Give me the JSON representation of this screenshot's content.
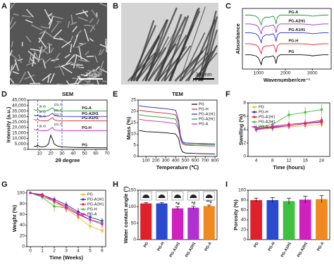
{
  "images": [
    {
      "panel": "A",
      "scale_bar": "2 μm"
    },
    {
      "panel": "B",
      "scale_bar": "300 nm"
    }
  ],
  "chart_data": [
    {
      "panel": "C",
      "type": "line",
      "x_label": "Wavenumber/cm⁻¹",
      "y_label": "Absorbance",
      "legend": "inline",
      "x": [
        500,
        700,
        900,
        1000,
        1050,
        1100,
        1150,
        1250,
        1400,
        1550,
        1600,
        1650,
        1700,
        1800,
        2000,
        2300,
        2600,
        2900,
        3000,
        3200,
        3400,
        3600
      ],
      "xlim": [
        400,
        3700
      ],
      "xticks": [
        1000,
        2000,
        3000
      ],
      "ylim": [
        -0.5,
        5
      ],
      "series": [
        {
          "name": "PG",
          "color": "#000000",
          "values": [
            0.8,
            0.8,
            0.7,
            0.5,
            0.2,
            -0.1,
            0.4,
            0.6,
            0.6,
            0.7,
            0.5,
            0,
            0.6,
            0.8,
            0.8,
            0.8,
            0.8,
            0.75,
            0.7,
            0.75,
            0.8,
            0.8
          ]
        },
        {
          "name": "PG-H",
          "color": "#e0202a",
          "values": [
            1.8,
            1.8,
            1.7,
            1.5,
            1.2,
            0.9,
            1.4,
            1.6,
            1.6,
            1.7,
            1.5,
            1.0,
            1.6,
            1.8,
            1.8,
            1.8,
            1.8,
            1.75,
            1.7,
            1.75,
            1.8,
            1.8
          ]
        },
        {
          "name": "PG-A1H1",
          "color": "#2a2ad0",
          "values": [
            2.8,
            2.8,
            2.7,
            2.5,
            2.2,
            1.9,
            2.4,
            2.6,
            2.6,
            2.7,
            2.5,
            2.0,
            2.6,
            2.8,
            2.8,
            2.8,
            2.8,
            2.75,
            2.7,
            2.75,
            2.8,
            2.8
          ]
        },
        {
          "name": "PG-A2H1",
          "color": "#9b30c8",
          "values": [
            3.6,
            3.6,
            3.5,
            3.3,
            3.0,
            2.7,
            3.2,
            3.4,
            3.4,
            3.5,
            3.3,
            2.8,
            3.4,
            3.6,
            3.6,
            3.6,
            3.6,
            3.55,
            3.5,
            3.55,
            3.6,
            3.6
          ]
        },
        {
          "name": "PG-A",
          "color": "#1a9a2a",
          "values": [
            4.4,
            4.4,
            4.3,
            4.1,
            3.8,
            3.5,
            4.0,
            4.2,
            4.2,
            4.3,
            4.1,
            3.6,
            4.2,
            4.4,
            4.4,
            4.4,
            4.4,
            4.35,
            4.3,
            4.35,
            4.4,
            4.4
          ]
        }
      ]
    },
    {
      "panel": "D",
      "type": "line",
      "title": "SEM",
      "x_label": "2θ degree",
      "y_label": "Intensity (a.u.)",
      "legend": "inline",
      "x": [
        5,
        7,
        8.4,
        10,
        13,
        16,
        18,
        20,
        21.7,
        23,
        26,
        30,
        40,
        50,
        60,
        70
      ],
      "xlim": [
        0,
        70
      ],
      "xticks": [
        10,
        20,
        30,
        40,
        50,
        60,
        70
      ],
      "ylim": [
        0,
        45000
      ],
      "yticks": [
        0,
        {
          "value": 5000,
          "label": "5,000"
        },
        {
          "value": 10000,
          "label": "10,000"
        },
        {
          "value": 15000,
          "label": "15,000"
        },
        {
          "value": 20000,
          "label": "20,000"
        },
        {
          "value": 25000,
          "label": "25,000"
        },
        {
          "value": 30000,
          "label": "30,000"
        },
        {
          "value": 35000,
          "label": "35,000"
        },
        {
          "value": 40000,
          "label": "40,000"
        },
        {
          "value": 45000,
          "label": "45,000"
        }
      ],
      "vlines": [
        8.4,
        30
      ],
      "annotations": [
        "(8.4)",
        "(21.7)"
      ],
      "series": [
        {
          "name": "PG",
          "color": "#000000",
          "values": [
            3000,
            2500,
            4000,
            2500,
            2200,
            3000,
            5000,
            13000,
            9000,
            5000,
            3000,
            2200,
            1800,
            1600,
            1500,
            1400
          ]
        },
        {
          "name": "PG-H",
          "color": "#d020c0",
          "values": [
            18500,
            17500,
            18500,
            17200,
            17000,
            17200,
            17500,
            19000,
            20000,
            18000,
            17300,
            17100,
            17000,
            17000,
            17000,
            17000
          ]
        },
        {
          "name": "PG-A1H1",
          "color": "#e0202a",
          "values": [
            27500,
            26500,
            27500,
            26200,
            26000,
            26200,
            26500,
            28000,
            29000,
            27000,
            26300,
            26100,
            26000,
            26000,
            26000,
            26000
          ]
        },
        {
          "name": "PG-A2H1",
          "color": "#2a2ad0",
          "values": [
            31500,
            30500,
            31500,
            30200,
            30000,
            30200,
            30500,
            32000,
            33000,
            31000,
            30300,
            30100,
            30000,
            30000,
            30000,
            30000
          ]
        },
        {
          "name": "PG-A",
          "color": "#1a9a2a",
          "values": [
            36500,
            35500,
            36500,
            35200,
            35000,
            35200,
            35500,
            37000,
            38000,
            36000,
            35300,
            35100,
            35000,
            35000,
            35000,
            35000
          ]
        }
      ]
    },
    {
      "panel": "E",
      "type": "line",
      "title": "TEM",
      "x_label": "Temperature (℃)",
      "y_label": "Mass (%)",
      "legend": "upper right",
      "x": [
        30,
        100,
        200,
        300,
        400,
        430,
        450,
        470,
        500,
        600,
        700,
        800
      ],
      "xlim": [
        20,
        820
      ],
      "xticks": [
        100,
        200,
        300,
        400,
        500,
        600,
        700,
        800
      ],
      "ylim": [
        0,
        25
      ],
      "yticks": [
        0,
        5,
        10,
        15,
        20,
        25
      ],
      "series": [
        {
          "name": "PG",
          "color": "#000000",
          "values": [
            11.5,
            11,
            10.8,
            10.5,
            10,
            8,
            4,
            2,
            1.5,
            1.3,
            1.2,
            1.1
          ]
        },
        {
          "name": "PG-H",
          "color": "#e0202a",
          "values": [
            20.5,
            20,
            19.6,
            19.2,
            18.5,
            15,
            9,
            6,
            5.5,
            5.3,
            5.2,
            5.1
          ]
        },
        {
          "name": "PG-A1H1",
          "color": "#2a2ad0",
          "values": [
            22.5,
            22,
            21.6,
            21.2,
            20.5,
            16,
            9,
            6.5,
            6,
            5.8,
            5.7,
            5.6
          ]
        },
        {
          "name": "PG-A2H1",
          "color": "#1a9a2a",
          "values": [
            18.5,
            18,
            17.6,
            17.2,
            16.5,
            13,
            8,
            6,
            5.5,
            5.3,
            5.2,
            5.1
          ]
        },
        {
          "name": "PG-A",
          "color": "#d020c0",
          "values": [
            16.5,
            16,
            15.6,
            15.2,
            14.5,
            12,
            7.5,
            5.5,
            5,
            4.8,
            4.7,
            4.6
          ]
        }
      ]
    },
    {
      "panel": "F",
      "type": "line",
      "x_label": "Time (hours)",
      "y_label": "Swelling (%)",
      "legend": "upper left",
      "markers": true,
      "categories": [
        "4",
        "8",
        "12",
        "16",
        "24"
      ],
      "ylim": [
        0,
        8
      ],
      "yticks": [
        0,
        2,
        4,
        6,
        8
      ],
      "series": [
        {
          "name": "PG",
          "color": "#f0c020",
          "values": [
            4.0,
            4.2,
            4.4,
            4.6,
            4.8
          ],
          "errors": [
            0.4,
            0.4,
            0.5,
            0.5,
            0.5
          ]
        },
        {
          "name": "PG-H",
          "color": "#2a2ad0",
          "values": [
            4.1,
            4.3,
            4.6,
            4.9,
            5.2
          ],
          "errors": [
            0.4,
            0.5,
            0.5,
            0.5,
            0.6
          ]
        },
        {
          "name": "PG-A1H1",
          "color": "#e0202a",
          "values": [
            4.2,
            4.5,
            4.8,
            5.0,
            5.4
          ],
          "errors": [
            0.4,
            0.5,
            0.5,
            0.6,
            0.6
          ]
        },
        {
          "name": "PG-A2H1",
          "color": "#40c040",
          "values": [
            4.3,
            4.8,
            6.2,
            6.6,
            7.0
          ],
          "errors": [
            0.5,
            0.6,
            0.7,
            0.8,
            0.8
          ]
        },
        {
          "name": "PG-A",
          "color": "#d020c0",
          "values": [
            4.0,
            4.4,
            4.6,
            4.9,
            5.1
          ],
          "errors": [
            0.4,
            0.4,
            0.5,
            0.5,
            0.6
          ]
        }
      ]
    },
    {
      "panel": "G",
      "type": "line",
      "x_label": "Time (Weeks)",
      "y_label": "Weight (%)",
      "legend": "upper right",
      "markers": true,
      "x": [
        0,
        1,
        2,
        3,
        4,
        5,
        6
      ],
      "xlim": [
        -0.3,
        6.3
      ],
      "xticks": [
        0,
        1,
        2,
        3,
        4,
        5,
        6
      ],
      "ylim": [
        0,
        105
      ],
      "yticks": [
        0,
        20,
        40,
        60,
        80,
        100
      ],
      "series": [
        {
          "name": "PG",
          "color": "#f0c020",
          "values": [
            100,
            95,
            82,
            70,
            55,
            38,
            30
          ],
          "errors": [
            0,
            4,
            6,
            7,
            8,
            7,
            6
          ]
        },
        {
          "name": "PG-A1H1",
          "color": "#2a2ad0",
          "values": [
            100,
            96,
            88,
            78,
            65,
            55,
            48
          ],
          "errors": [
            0,
            3,
            5,
            6,
            7,
            7,
            6
          ]
        },
        {
          "name": "PG-A2H1",
          "color": "#e0202a",
          "values": [
            100,
            97,
            85,
            75,
            62,
            50,
            42
          ],
          "errors": [
            0,
            3,
            5,
            6,
            7,
            7,
            6
          ]
        },
        {
          "name": "PG-H",
          "color": "#40c040",
          "values": [
            100,
            92,
            75,
            72,
            60,
            50,
            45
          ],
          "errors": [
            0,
            5,
            10,
            8,
            8,
            7,
            6
          ]
        },
        {
          "name": "PG-A",
          "color": "#d020c0",
          "values": [
            100,
            94,
            85,
            72,
            60,
            50,
            42
          ],
          "errors": [
            0,
            4,
            6,
            7,
            8,
            7,
            6
          ]
        }
      ]
    },
    {
      "panel": "H",
      "type": "bar",
      "y_label": "Water contact angle (°)",
      "categories": [
        "PG",
        "PG-H",
        "PG-A1H1",
        "PG-A2H1",
        "PG-A"
      ],
      "values": [
        110,
        110,
        95,
        97,
        102
      ],
      "errors": [
        2,
        2,
        5,
        4,
        3
      ],
      "colors": [
        "#e0202a",
        "#2a4ad0",
        "#d020c0",
        "#b030d0",
        "#f08a20"
      ],
      "annotations": [
        null,
        null,
        "*#",
        "*#",
        "**#"
      ],
      "ylim": [
        0,
        150
      ],
      "yticks": [
        0,
        50,
        100,
        150
      ]
    },
    {
      "panel": "I",
      "type": "bar",
      "y_label": "Porosity (%)",
      "categories": [
        "PG",
        "PG-H",
        "PG-A1H1",
        "PG-A2H1",
        "PG-A"
      ],
      "values": [
        80,
        80,
        78,
        81,
        82
      ],
      "errors": [
        4,
        5,
        6,
        7,
        7
      ],
      "colors": [
        "#e0202a",
        "#2a4ad0",
        "#40c040",
        "#d020c0",
        "#f08a20"
      ],
      "ylim": [
        0,
        100
      ],
      "yticks": [
        0,
        20,
        40,
        60,
        80,
        100
      ]
    }
  ]
}
